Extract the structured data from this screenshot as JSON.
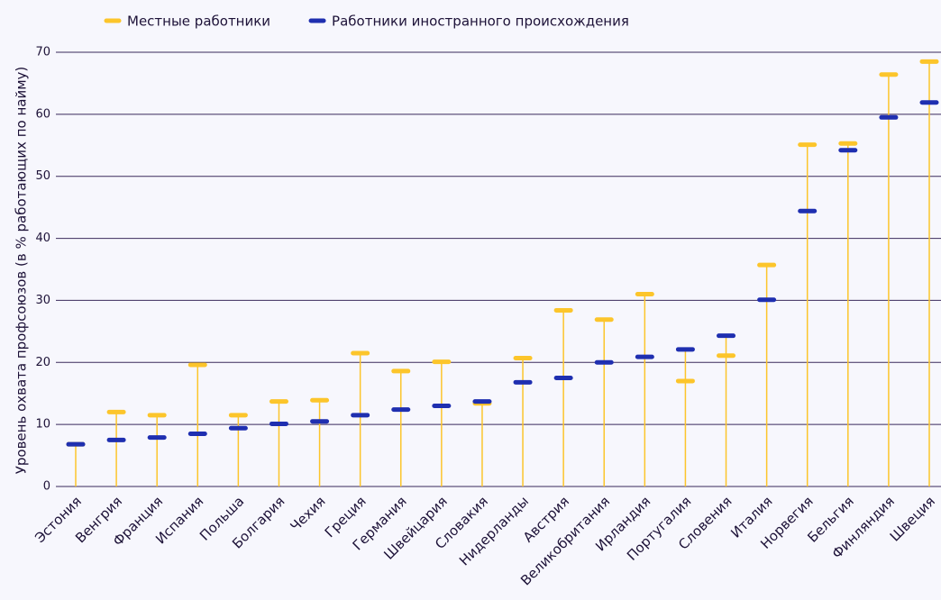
{
  "chart_data": {
    "type": "dot-range",
    "y_label": "Уровень охвата профсоюзов (в % работающих по найму)",
    "categories": [
      "Эстония",
      "Венгрия",
      "Франция",
      "Испания",
      "Польша",
      "Болгария",
      "Чехия",
      "Греция",
      "Германия",
      "Швейцария",
      "Словакия",
      "Нидерланды",
      "Австрия",
      "Великобритания",
      "Ирландия",
      "Португалия",
      "Словения",
      "Италия",
      "Норвегия",
      "Бельгия",
      "Финляндия",
      "Швеция"
    ],
    "series": [
      {
        "name": "Местные работники",
        "color": "#fcc52b",
        "values": [
          6.8,
          12,
          11.5,
          19.6,
          11.5,
          13.7,
          13.9,
          21.5,
          18.6,
          20.1,
          13.4,
          20.7,
          28.4,
          26.9,
          31,
          17,
          21.1,
          35.7,
          55.1,
          55.3,
          66.4,
          68.5
        ]
      },
      {
        "name": "Работники иностранного происхождения",
        "color": "#1f2fb0",
        "values": [
          6.8,
          7.5,
          7.9,
          8.5,
          9.4,
          10.1,
          10.5,
          11.5,
          12.4,
          13,
          13.7,
          16.8,
          17.5,
          20,
          20.9,
          22.1,
          24.3,
          30.1,
          44.4,
          54.2,
          59.5,
          61.9
        ]
      }
    ],
    "ylim": [
      0,
      70
    ],
    "yticks": [
      0,
      10,
      20,
      30,
      40,
      50,
      60,
      70
    ],
    "grid": true,
    "legend": "top"
  }
}
